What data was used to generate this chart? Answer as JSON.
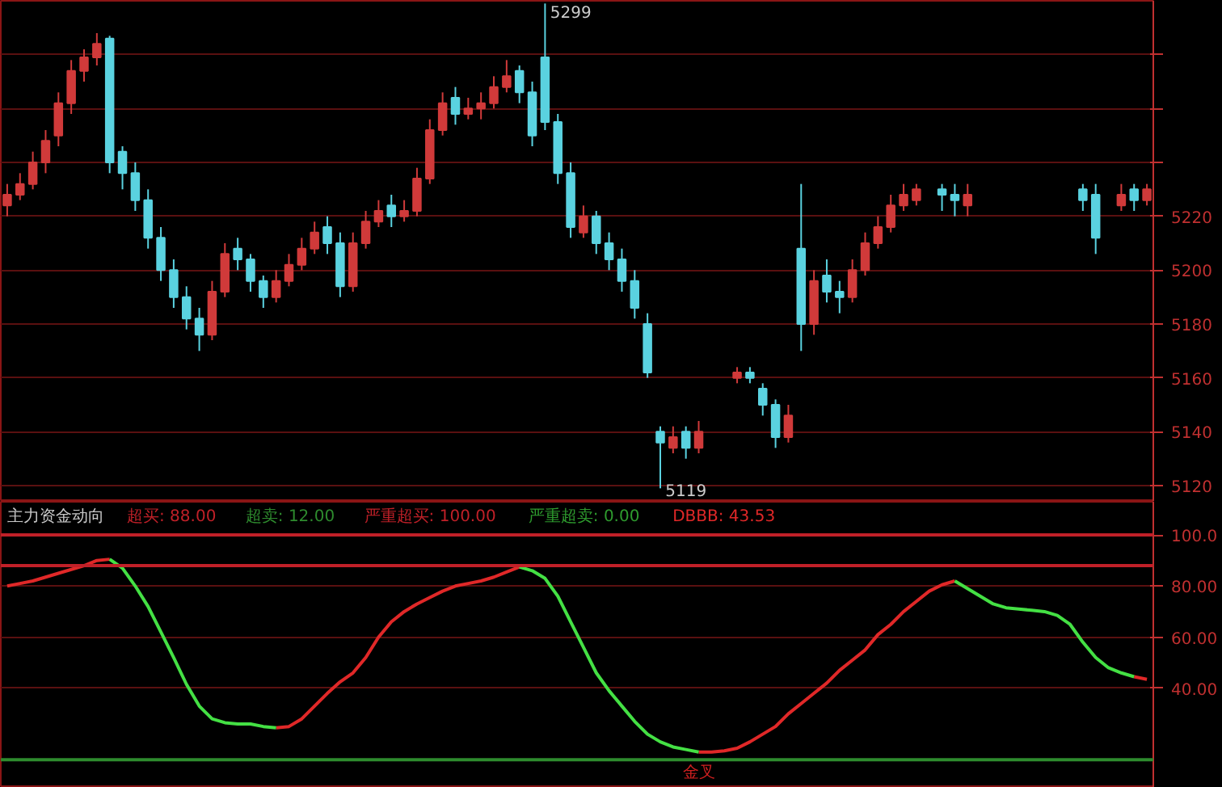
{
  "chart_data": [
    {
      "type": "candlestick",
      "categories": [
        null,
        null,
        null,
        null,
        null,
        null,
        null,
        null,
        null,
        null,
        null,
        null,
        null,
        null,
        null,
        null,
        null,
        null,
        null,
        null,
        null,
        null,
        null,
        null,
        null,
        null,
        null,
        null,
        null,
        null,
        null,
        null,
        null,
        null,
        null,
        null,
        null,
        null,
        null,
        null,
        null,
        null,
        null,
        null,
        null,
        null,
        null,
        null,
        null,
        null,
        null,
        null,
        null,
        null,
        null,
        null,
        null,
        null,
        null,
        null,
        null,
        null,
        null,
        null,
        null,
        null,
        null,
        null,
        null,
        null,
        null,
        null,
        null,
        null,
        null,
        null,
        null,
        null,
        null,
        null,
        null,
        null,
        null,
        null,
        null,
        null,
        null,
        null,
        null,
        null
      ],
      "ohlc": [
        [
          5224,
          5232,
          5220,
          5228
        ],
        [
          5228,
          5236,
          5226,
          5232
        ],
        [
          5232,
          5244,
          5230,
          5240
        ],
        [
          5240,
          5252,
          5236,
          5248
        ],
        [
          5250,
          5266,
          5246,
          5262
        ],
        [
          5262,
          5278,
          5258,
          5274
        ],
        [
          5274,
          5282,
          5270,
          5279
        ],
        [
          5279,
          5288,
          5276,
          5284
        ],
        [
          5286,
          5287,
          5236,
          5240
        ],
        [
          5244,
          5246,
          5230,
          5236
        ],
        [
          5236,
          5240,
          5222,
          5226
        ],
        [
          5226,
          5230,
          5208,
          5212
        ],
        [
          5212,
          5216,
          5196,
          5200
        ],
        [
          5200,
          5204,
          5186,
          5190
        ],
        [
          5190,
          5194,
          5178,
          5182
        ],
        [
          5182,
          5186,
          5170,
          5176
        ],
        [
          5176,
          5196,
          5174,
          5192
        ],
        [
          5192,
          5210,
          5190,
          5206
        ],
        [
          5208,
          5212,
          5200,
          5204
        ],
        [
          5204,
          5206,
          5192,
          5196
        ],
        [
          5196,
          5198,
          5186,
          5190
        ],
        [
          5190,
          5200,
          5188,
          5196
        ],
        [
          5196,
          5206,
          5194,
          5202
        ],
        [
          5202,
          5212,
          5200,
          5208
        ],
        [
          5208,
          5218,
          5206,
          5214
        ],
        [
          5216,
          5220,
          5206,
          5210
        ],
        [
          5210,
          5214,
          5190,
          5194
        ],
        [
          5194,
          5214,
          5192,
          5210
        ],
        [
          5210,
          5222,
          5208,
          5218
        ],
        [
          5218,
          5226,
          5216,
          5222
        ],
        [
          5224,
          5228,
          5216,
          5220
        ],
        [
          5220,
          5226,
          5218,
          5222
        ],
        [
          5222,
          5238,
          5220,
          5234
        ],
        [
          5234,
          5256,
          5232,
          5252
        ],
        [
          5252,
          5266,
          5250,
          5262
        ],
        [
          5264,
          5268,
          5254,
          5258
        ],
        [
          5258,
          5264,
          5256,
          5260
        ],
        [
          5260,
          5266,
          5256,
          5262
        ],
        [
          5262,
          5272,
          5260,
          5268
        ],
        [
          5268,
          5278,
          5266,
          5272
        ],
        [
          5274,
          5276,
          5262,
          5266
        ],
        [
          5266,
          5270,
          5246,
          5250
        ],
        [
          5279,
          5299,
          5252,
          5255
        ],
        [
          5255,
          5258,
          5232,
          5236
        ],
        [
          5236,
          5240,
          5212,
          5216
        ],
        [
          5214,
          5224,
          5212,
          5220
        ],
        [
          5220,
          5222,
          5206,
          5210
        ],
        [
          5210,
          5214,
          5200,
          5204
        ],
        [
          5204,
          5208,
          5192,
          5196
        ],
        [
          5196,
          5200,
          5182,
          5186
        ],
        [
          5180,
          5184,
          5160,
          5162
        ],
        [
          5140,
          5142,
          5119,
          5136
        ],
        [
          5134,
          5142,
          5132,
          5138
        ],
        [
          5140,
          5142,
          5130,
          5134
        ],
        [
          5134,
          5144,
          5132,
          5140
        ],
        null,
        null,
        [
          5160,
          5164,
          5158,
          5162
        ],
        [
          5162,
          5164,
          5158,
          5160
        ],
        [
          5156,
          5158,
          5146,
          5150
        ],
        [
          5150,
          5152,
          5134,
          5138
        ],
        [
          5138,
          5150,
          5136,
          5146
        ],
        [
          5208,
          5232,
          5170,
          5180
        ],
        [
          5180,
          5200,
          5176,
          5196
        ],
        [
          5198,
          5204,
          5188,
          5192
        ],
        [
          5192,
          5196,
          5184,
          5190
        ],
        [
          5190,
          5204,
          5188,
          5200
        ],
        [
          5200,
          5214,
          5198,
          5210
        ],
        [
          5210,
          5220,
          5208,
          5216
        ],
        [
          5216,
          5228,
          5214,
          5224
        ],
        [
          5224,
          5232,
          5222,
          5228
        ],
        [
          5226,
          5232,
          5224,
          5230
        ],
        null,
        [
          5230,
          5232,
          5222,
          5228
        ],
        [
          5228,
          5232,
          5220,
          5226
        ],
        [
          5224,
          5232,
          5220,
          5228
        ],
        null,
        null,
        null,
        null,
        null,
        null,
        null,
        null,
        [
          5230,
          5232,
          5222,
          5226
        ],
        [
          5228,
          5232,
          5206,
          5212
        ],
        null,
        [
          5224,
          5232,
          5222,
          5228
        ],
        [
          5230,
          5232,
          5222,
          5226
        ],
        [
          5226,
          5232,
          5224,
          5230
        ]
      ],
      "colors": [
        "#d03a3a",
        "#d03a3a",
        "#d03a3a",
        "#d03a3a",
        "#d03a3a",
        "#d03a3a",
        "#d03a3a",
        "#d03a3a",
        "#5ad2e0",
        "#5ad2e0",
        "#5ad2e0",
        "#5ad2e0",
        "#5ad2e0",
        "#5ad2e0",
        "#5ad2e0",
        "#5ad2e0",
        "#d03a3a",
        "#d03a3a",
        "#5ad2e0",
        "#5ad2e0",
        "#5ad2e0",
        "#d03a3a",
        "#d03a3a",
        "#d03a3a",
        "#d03a3a",
        "#5ad2e0",
        "#5ad2e0",
        "#d03a3a",
        "#d03a3a",
        "#d03a3a",
        "#5ad2e0",
        "#d03a3a",
        "#d03a3a",
        "#d03a3a",
        "#d03a3a",
        "#5ad2e0",
        "#d03a3a",
        "#d03a3a",
        "#d03a3a",
        "#d03a3a",
        "#5ad2e0",
        "#5ad2e0",
        "#5ad2e0",
        "#5ad2e0",
        "#5ad2e0",
        "#d03a3a",
        "#5ad2e0",
        "#5ad2e0",
        "#5ad2e0",
        "#5ad2e0",
        "#5ad2e0",
        "#5ad2e0",
        "#d03a3a",
        "#5ad2e0",
        "#d03a3a",
        null,
        null,
        "#d03a3a",
        "#5ad2e0",
        "#5ad2e0",
        "#5ad2e0",
        "#d03a3a",
        "#5ad2e0",
        "#d03a3a",
        "#5ad2e0",
        "#5ad2e0",
        "#d03a3a",
        "#d03a3a",
        "#d03a3a",
        "#d03a3a",
        "#d03a3a",
        "#d03a3a",
        null,
        "#5ad2e0",
        "#5ad2e0",
        "#d03a3a",
        null,
        null,
        null,
        null,
        null,
        null,
        null,
        null,
        "#5ad2e0",
        "#5ad2e0",
        null,
        "#d03a3a",
        "#5ad2e0",
        "#d03a3a"
      ],
      "ylim": [
        5114,
        5300
      ],
      "yticks": [
        5120,
        5140,
        5160,
        5180,
        5200,
        5220,
        {
          "value": 5240,
          "label": null
        },
        {
          "value": 5260,
          "label": null
        },
        {
          "value": 5280,
          "label": null
        }
      ],
      "grid": "y",
      "tick_labels": "y",
      "annotations": [
        "5299",
        "5119"
      ]
    },
    {
      "type": "line",
      "title": "主力资金动向",
      "categories": [
        null,
        null,
        null,
        null,
        null,
        null,
        null,
        null,
        null,
        null,
        null,
        null,
        null,
        null,
        null,
        null,
        null,
        null,
        null,
        null,
        null,
        null,
        null,
        null,
        null,
        null,
        null,
        null,
        null,
        null,
        null,
        null,
        null,
        null,
        null,
        null,
        null,
        null,
        null,
        null,
        null,
        null,
        null,
        null,
        null,
        null,
        null,
        null,
        null,
        null,
        null,
        null,
        null,
        null,
        null,
        null,
        null,
        null,
        null,
        null,
        null,
        null,
        null,
        null,
        null,
        null,
        null,
        null,
        null,
        null,
        null,
        null,
        null,
        null,
        null,
        null,
        null,
        null,
        null,
        null,
        null,
        null,
        null,
        null,
        null,
        null,
        null,
        null,
        null,
        null
      ],
      "series": [
        {
          "color": "#e02828",
          "values": [
            80,
            81,
            82,
            83.5,
            85,
            86.5,
            88,
            90,
            90.5,
            null,
            null,
            null,
            null,
            null,
            null,
            null,
            null,
            null,
            null,
            null,
            null,
            24.5,
            25,
            28,
            33,
            38,
            42.5,
            46,
            52,
            60,
            66,
            70,
            73,
            75.5,
            78,
            80,
            81,
            82,
            83.5,
            85.5,
            87.5,
            null,
            null,
            null,
            null,
            null,
            null,
            null,
            null,
            null,
            null,
            null,
            null,
            null,
            15,
            15,
            15.5,
            16.5,
            19,
            22,
            25,
            30,
            34,
            38,
            42,
            47,
            51,
            55,
            61,
            65,
            70,
            74,
            78,
            80.5,
            82,
            null,
            null,
            null,
            null,
            null,
            null,
            null,
            null,
            null,
            null,
            null,
            null,
            null,
            44.5,
            43.5
          ]
        },
        {
          "color": "#44e044",
          "values": [
            null,
            null,
            null,
            null,
            null,
            null,
            null,
            null,
            90.5,
            87,
            80,
            72,
            62,
            52,
            41.5,
            33,
            28,
            26.5,
            26,
            26,
            25,
            24.5,
            null,
            null,
            null,
            null,
            null,
            null,
            null,
            null,
            null,
            null,
            null,
            null,
            null,
            null,
            null,
            null,
            null,
            null,
            87.5,
            86,
            83,
            76,
            66,
            56,
            46,
            39,
            33,
            27,
            22,
            19,
            17,
            16,
            15,
            null,
            null,
            null,
            null,
            null,
            null,
            null,
            null,
            null,
            null,
            null,
            null,
            null,
            null,
            null,
            null,
            null,
            null,
            null,
            82,
            79,
            76,
            73,
            71.5,
            71,
            70.5,
            70,
            68.5,
            65,
            58,
            52,
            48,
            46,
            44.5,
            null
          ]
        }
      ],
      "ylim": [
        1,
        113
      ],
      "yticks": [
        {
          "value": 40,
          "label": "40.00"
        },
        {
          "value": 60,
          "label": "60.00"
        },
        {
          "value": 80,
          "label": "80.00"
        },
        {
          "value": 100,
          "label": "100.0"
        }
      ],
      "grid": "y",
      "tick_labels": "y",
      "ref_lines": [
        {
          "axis": "y",
          "value": 88,
          "label": "超买: 88.00",
          "color": "#c02028"
        },
        {
          "axis": "y",
          "value": 12,
          "label": "超卖: 12.00",
          "color": "#2e8b2e"
        },
        {
          "axis": "y",
          "value": 100,
          "label": "严重超买: 100.00",
          "color": "#c02028"
        }
      ],
      "annotations": [
        "严重超卖: 0.00",
        "DBBB: 43.53",
        "金叉"
      ]
    }
  ]
}
